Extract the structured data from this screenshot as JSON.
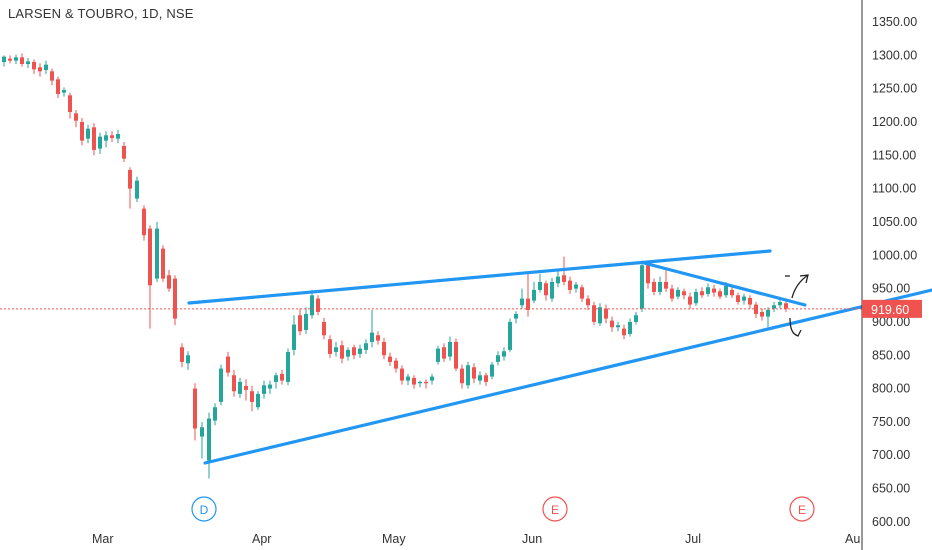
{
  "symbol_title": "LARSEN & TOUBRO, 1D, NSE",
  "chart_data": {
    "type": "candlestick",
    "y_axis": {
      "range": [
        600,
        1380
      ],
      "ticks": [
        "1350.00",
        "1300.00",
        "1250.00",
        "1200.00",
        "1150.00",
        "1100.00",
        "1050.00",
        "1000.00",
        "950.00",
        "900.00",
        "850.00",
        "800.00",
        "750.00",
        "700.00",
        "650.00",
        "600.00"
      ]
    },
    "x_axis": {
      "ticks": [
        "Mar",
        "Apr",
        "May",
        "Jun",
        "Jul",
        "Au"
      ]
    },
    "current_price": {
      "label": "919.60",
      "value": 919.6
    },
    "event_markers": [
      {
        "label": "D",
        "near": "Mar 20"
      },
      {
        "label": "E",
        "near": "Jun 1"
      },
      {
        "label": "E",
        "near": "Jul 20"
      }
    ],
    "trendlines": [
      {
        "name": "upper resistance",
        "from": [
          "Mar 20",
          925
        ],
        "to": [
          "Jul 24",
          1007
        ]
      },
      {
        "name": "lower support",
        "from": [
          "Mar 23",
          688
        ],
        "to": [
          "Aug 1",
          948
        ]
      },
      {
        "name": "descending line",
        "from": [
          "Jun 24",
          990
        ],
        "to": [
          "Jul 24",
          921
        ]
      }
    ],
    "colors": {
      "up": "#26a69a",
      "down": "#ef5350",
      "trendline": "#2196f3",
      "price_line": "#ef5350"
    }
  }
}
